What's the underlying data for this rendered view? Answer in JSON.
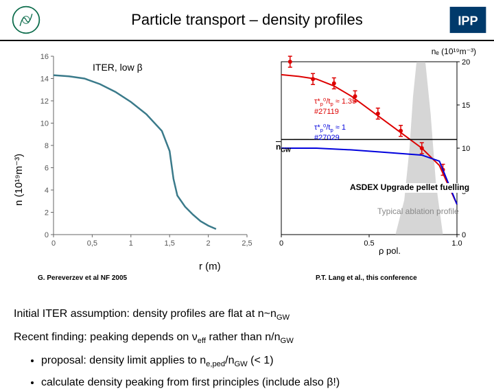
{
  "header": {
    "title": "Particle transport – density profiles"
  },
  "yaxis_label": "n (10¹⁹m⁻³)",
  "xaxis_label": "r (m)",
  "left_chart": {
    "type": "line",
    "annotation": "ITER, low β",
    "xlim": [
      0,
      2.5
    ],
    "ylim": [
      0,
      16
    ],
    "xtick_step": 0.5,
    "ytick_step": 2,
    "xticks": [
      "0",
      "0,5",
      "1",
      "1,5",
      "2",
      "2,5"
    ],
    "yticks": [
      "0",
      "2",
      "4",
      "6",
      "8",
      "10",
      "12",
      "14",
      "16"
    ],
    "line_color": "#3a7a8a",
    "line_width": 2.5,
    "background_color": "#ffffff",
    "axis_color": "#666666",
    "points": [
      [
        0,
        14.3
      ],
      [
        0.2,
        14.2
      ],
      [
        0.4,
        14.0
      ],
      [
        0.6,
        13.5
      ],
      [
        0.8,
        12.8
      ],
      [
        1.0,
        11.9
      ],
      [
        1.2,
        10.8
      ],
      [
        1.4,
        9.3
      ],
      [
        1.5,
        7.5
      ],
      [
        1.55,
        5.0
      ],
      [
        1.6,
        3.5
      ],
      [
        1.7,
        2.5
      ],
      [
        1.8,
        1.8
      ],
      [
        1.9,
        1.2
      ],
      [
        2.0,
        0.8
      ],
      [
        2.1,
        0.5
      ]
    ],
    "credit": "G. Pereverzev et al NF 2005"
  },
  "right_chart": {
    "type": "line",
    "top_label": "nₑ (10¹⁹m⁻³)",
    "xlabel": "ρ pol.",
    "xlim": [
      0,
      1.0
    ],
    "ylim_left": [
      0,
      1
    ],
    "ylim_right": [
      0,
      20
    ],
    "xticks": [
      "0",
      "0.5",
      "1.0"
    ],
    "rticks": [
      "0",
      "5",
      "10",
      "15",
      "20"
    ],
    "background_color": "#ffffff",
    "axis_color": "#000000",
    "grid_color": "#cccccc",
    "series": [
      {
        "name": "shot27119",
        "annot_html": "τ*<sub>p</sub>⁰/t<sub>p</sub> ≈ 1.35",
        "shot": "#27119",
        "color": "#dd0000",
        "line_width": 2,
        "points": [
          [
            0,
            18.5
          ],
          [
            0.1,
            18.3
          ],
          [
            0.2,
            18.0
          ],
          [
            0.3,
            17.2
          ],
          [
            0.4,
            16.0
          ],
          [
            0.5,
            14.5
          ],
          [
            0.6,
            13.0
          ],
          [
            0.7,
            11.5
          ],
          [
            0.8,
            10.0
          ],
          [
            0.9,
            8.0
          ],
          [
            1.0,
            3.5
          ]
        ],
        "markers": [
          [
            0.05,
            20
          ],
          [
            0.18,
            18
          ],
          [
            0.3,
            17.5
          ],
          [
            0.42,
            16
          ],
          [
            0.55,
            14
          ],
          [
            0.68,
            12
          ],
          [
            0.8,
            10
          ],
          [
            0.92,
            7.5
          ]
        ]
      },
      {
        "name": "shot27029",
        "annot_html": "τ*<sub>p</sub>⁰/t<sub>p</sub> ≈ 1",
        "shot": "#27029",
        "color": "#0000dd",
        "line_width": 2,
        "points": [
          [
            0,
            10
          ],
          [
            0.2,
            10
          ],
          [
            0.4,
            9.8
          ],
          [
            0.6,
            9.5
          ],
          [
            0.8,
            9.2
          ],
          [
            0.9,
            8.5
          ],
          [
            1.0,
            3.5
          ]
        ]
      },
      {
        "name": "nGW",
        "label": "n_GW",
        "color": "#000000",
        "line_width": 1.5,
        "points": [
          [
            0,
            11
          ],
          [
            1.0,
            11
          ]
        ]
      }
    ],
    "ablation_region": {
      "color": "#bbbbbb",
      "opacity": 0.6,
      "label": "Typical ablation profile",
      "points": [
        [
          0.65,
          0
        ],
        [
          0.7,
          4
        ],
        [
          0.73,
          10
        ],
        [
          0.75,
          16
        ],
        [
          0.77,
          20
        ],
        [
          0.82,
          20
        ],
        [
          0.85,
          14
        ],
        [
          0.88,
          6
        ],
        [
          0.92,
          0
        ]
      ]
    },
    "asdex_label": "ASDEX Upgrade pellet fuelling",
    "credit": "P.T. Lang et al., this conference"
  },
  "body_text": {
    "line1_pre": "Initial ITER assumption: density profiles are flat at n~n",
    "line1_sub": "GW",
    "line2_pre": "Recent finding: peaking depends on ν",
    "line2_sub1": "eff",
    "line2_mid": " rather than n/n",
    "line2_sub2": "GW",
    "bullet1_pre": "proposal: density limit applies to n",
    "bullet1_sub1": "e,ped",
    "bullet1_mid": "/n",
    "bullet1_sub2": "GW",
    "bullet1_post": " (< 1)",
    "bullet2": "calculate density peaking from first principles (include also β!)"
  },
  "colors": {
    "header_rule": "#000000",
    "text": "#000000"
  }
}
